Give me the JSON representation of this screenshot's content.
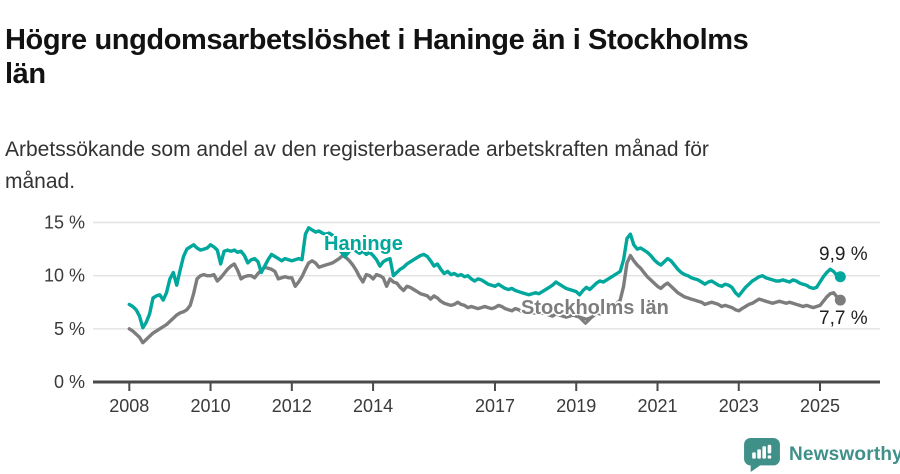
{
  "title": "Högre ungdomsarbetslöshet i Haninge än i Stockholms län",
  "subtitle": "Arbetssökande som andel av den registerbaserade arbetskraften månad för månad.",
  "branding": {
    "logo_text": "Newsworthy",
    "logo_color": "#3f9089"
  },
  "colors": {
    "accent_teal": "#00a79c",
    "series_gray": "#7d7d7d",
    "grid": "#e2e2e2",
    "axis": "#4a4a4a",
    "tick_text": "#3a3a3a",
    "end_label_text": "#1f1f1f"
  },
  "chart_data": {
    "type": "line",
    "title": "Högre ungdomsarbetslöshet i Haninge än i Stockholms län",
    "subtitle": "Arbetssökande som andel av den registerbaserade arbetskraften månad för månad.",
    "xlabel": "",
    "ylabel": "",
    "frequency": "monthly",
    "x_start_year": 2008,
    "x_start_month": 1,
    "x_end_year": 2025,
    "x_end_month": 7,
    "x_ticks": [
      "2008",
      "2010",
      "2012",
      "2014",
      "2017",
      "2019",
      "2021",
      "2023",
      "2025"
    ],
    "y_ticks": [
      {
        "value": 0,
        "label": "0 %"
      },
      {
        "value": 5,
        "label": "5 %"
      },
      {
        "value": 10,
        "label": "10 %"
      },
      {
        "value": 15,
        "label": "15 %"
      }
    ],
    "ylim": [
      0,
      15.2
    ],
    "grid": "horizontal",
    "legend_position": "inline-labels",
    "series": [
      {
        "name": "Haninge",
        "color": "#00a79c",
        "end_label": "9,9 %",
        "end_value": 9.9,
        "values": [
          7.3,
          7.1,
          6.8,
          6.2,
          5.1,
          5.6,
          6.4,
          7.9,
          8.1,
          8.2,
          7.7,
          8.4,
          9.7,
          10.3,
          9.1,
          10.5,
          11.8,
          12.5,
          12.7,
          12.9,
          12.6,
          12.4,
          12.5,
          12.6,
          12.9,
          12.7,
          12.4,
          11.1,
          12.3,
          12.4,
          12.3,
          12.4,
          12.2,
          12.3,
          11.9,
          11.2,
          11.5,
          11.6,
          11.3,
          10.3,
          10.9,
          11.5,
          12.0,
          11.8,
          11.6,
          11.4,
          11.6,
          11.5,
          11.4,
          11.5,
          11.6,
          11.5,
          13.9,
          14.5,
          14.3,
          14.1,
          14.2,
          14.0,
          13.9,
          14.0,
          13.8,
          13.5,
          13.2,
          12.9,
          12.7,
          12.5,
          12.7,
          12.3,
          12.1,
          12.3,
          12.0,
          12.2,
          11.9,
          11.5,
          10.9,
          11.3,
          11.5,
          11.6,
          10.0,
          10.3,
          10.6,
          10.8,
          11.1,
          11.3,
          11.5,
          11.7,
          11.9,
          12.0,
          11.8,
          11.4,
          10.9,
          11.1,
          10.6,
          10.2,
          10.4,
          10.1,
          10.2,
          10.0,
          10.1,
          9.9,
          10.0,
          9.7,
          9.5,
          9.7,
          9.6,
          9.4,
          9.2,
          9.1,
          9.0,
          9.2,
          9.0,
          8.8,
          8.7,
          8.8,
          8.6,
          8.5,
          8.4,
          8.3,
          8.2,
          8.3,
          8.4,
          8.3,
          8.5,
          8.7,
          8.9,
          9.1,
          9.4,
          9.2,
          9.0,
          8.8,
          8.7,
          8.6,
          8.5,
          8.2,
          8.6,
          8.9,
          8.7,
          9.0,
          9.3,
          9.5,
          9.4,
          9.6,
          9.8,
          10.0,
          10.2,
          10.4,
          11.5,
          13.5,
          13.9,
          12.9,
          12.5,
          12.6,
          12.4,
          12.2,
          11.9,
          11.5,
          11.2,
          11.0,
          11.3,
          11.6,
          11.4,
          11.0,
          10.6,
          10.3,
          10.1,
          10.0,
          9.8,
          9.7,
          9.6,
          9.4,
          9.2,
          9.4,
          9.5,
          9.3,
          9.1,
          9.0,
          9.2,
          9.1,
          8.9,
          8.4,
          8.1,
          8.5,
          8.9,
          9.2,
          9.5,
          9.7,
          9.9,
          10.0,
          9.8,
          9.7,
          9.6,
          9.5,
          9.5,
          9.6,
          9.5,
          9.4,
          9.6,
          9.5,
          9.3,
          9.2,
          9.1,
          8.9,
          8.8,
          8.9,
          9.4,
          9.9,
          10.3,
          10.6,
          10.4,
          10.0,
          9.9
        ]
      },
      {
        "name": "Stockholms län",
        "color": "#7d7d7d",
        "end_label": "7,7 %",
        "end_value": 7.7,
        "values": [
          5.0,
          4.8,
          4.5,
          4.2,
          3.7,
          4.0,
          4.3,
          4.6,
          4.8,
          5.0,
          5.2,
          5.4,
          5.7,
          6.0,
          6.3,
          6.5,
          6.6,
          6.8,
          7.2,
          8.3,
          9.7,
          10.0,
          10.1,
          10.0,
          10.0,
          10.1,
          9.5,
          9.8,
          10.2,
          10.6,
          10.9,
          11.1,
          10.5,
          9.7,
          9.9,
          10.0,
          10.0,
          9.8,
          10.2,
          10.5,
          10.8,
          10.7,
          10.6,
          10.4,
          9.7,
          9.8,
          9.9,
          9.8,
          9.8,
          9.0,
          9.4,
          9.9,
          10.6,
          11.2,
          11.4,
          11.2,
          10.8,
          10.9,
          11.0,
          11.1,
          11.2,
          11.4,
          11.6,
          11.9,
          11.7,
          11.4,
          11.0,
          10.5,
          9.9,
          9.4,
          10.1,
          10.0,
          9.7,
          10.1,
          10.0,
          9.8,
          9.0,
          9.7,
          9.4,
          9.3,
          8.9,
          8.6,
          9.0,
          8.9,
          8.7,
          8.5,
          8.3,
          8.2,
          8.1,
          7.8,
          8.1,
          7.9,
          7.6,
          7.4,
          7.3,
          7.2,
          7.3,
          7.5,
          7.3,
          7.2,
          7.0,
          7.1,
          7.0,
          6.9,
          7.0,
          7.1,
          7.0,
          6.9,
          7.0,
          7.2,
          7.1,
          6.9,
          6.8,
          6.7,
          6.9,
          6.8,
          6.6,
          6.5,
          6.4,
          6.5,
          6.5,
          6.4,
          6.5,
          6.4,
          6.3,
          6.2,
          6.4,
          6.3,
          6.2,
          6.1,
          6.2,
          6.3,
          6.2,
          6.1,
          6.0,
          5.9,
          6.0,
          6.2,
          6.5,
          6.4,
          6.6,
          6.8,
          7.0,
          7.2,
          7.4,
          7.7,
          9.0,
          11.2,
          11.9,
          11.4,
          11.0,
          10.7,
          10.3,
          9.9,
          9.6,
          9.3,
          9.0,
          8.8,
          9.1,
          9.3,
          9.0,
          8.7,
          8.4,
          8.2,
          8.0,
          7.9,
          7.8,
          7.7,
          7.6,
          7.5,
          7.3,
          7.4,
          7.5,
          7.4,
          7.3,
          7.1,
          7.2,
          7.1,
          7.0,
          6.8,
          6.7,
          6.9,
          7.1,
          7.3,
          7.4,
          7.6,
          7.8,
          7.7,
          7.6,
          7.5,
          7.4,
          7.5,
          7.6,
          7.5,
          7.4,
          7.5,
          7.4,
          7.3,
          7.2,
          7.1,
          7.2,
          7.1,
          7.0,
          7.1,
          7.2,
          7.6,
          8.0,
          8.3,
          8.4,
          8.0,
          7.7
        ]
      }
    ]
  }
}
